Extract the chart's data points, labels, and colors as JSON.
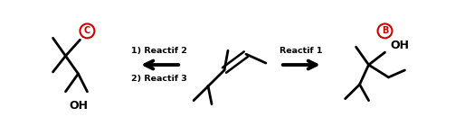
{
  "bg_color": "#ffffff",
  "text_color": "#000000",
  "red_color": "#cc0000",
  "figsize": [
    5.03,
    1.5
  ],
  "dpi": 100,
  "arrow_left_label1": "1) Reactif 2",
  "arrow_left_label2": "2) Reactif 3",
  "arrow_right_label": "Reactif 1",
  "label_OH": "OH",
  "label_C": "C",
  "label_B": "B"
}
